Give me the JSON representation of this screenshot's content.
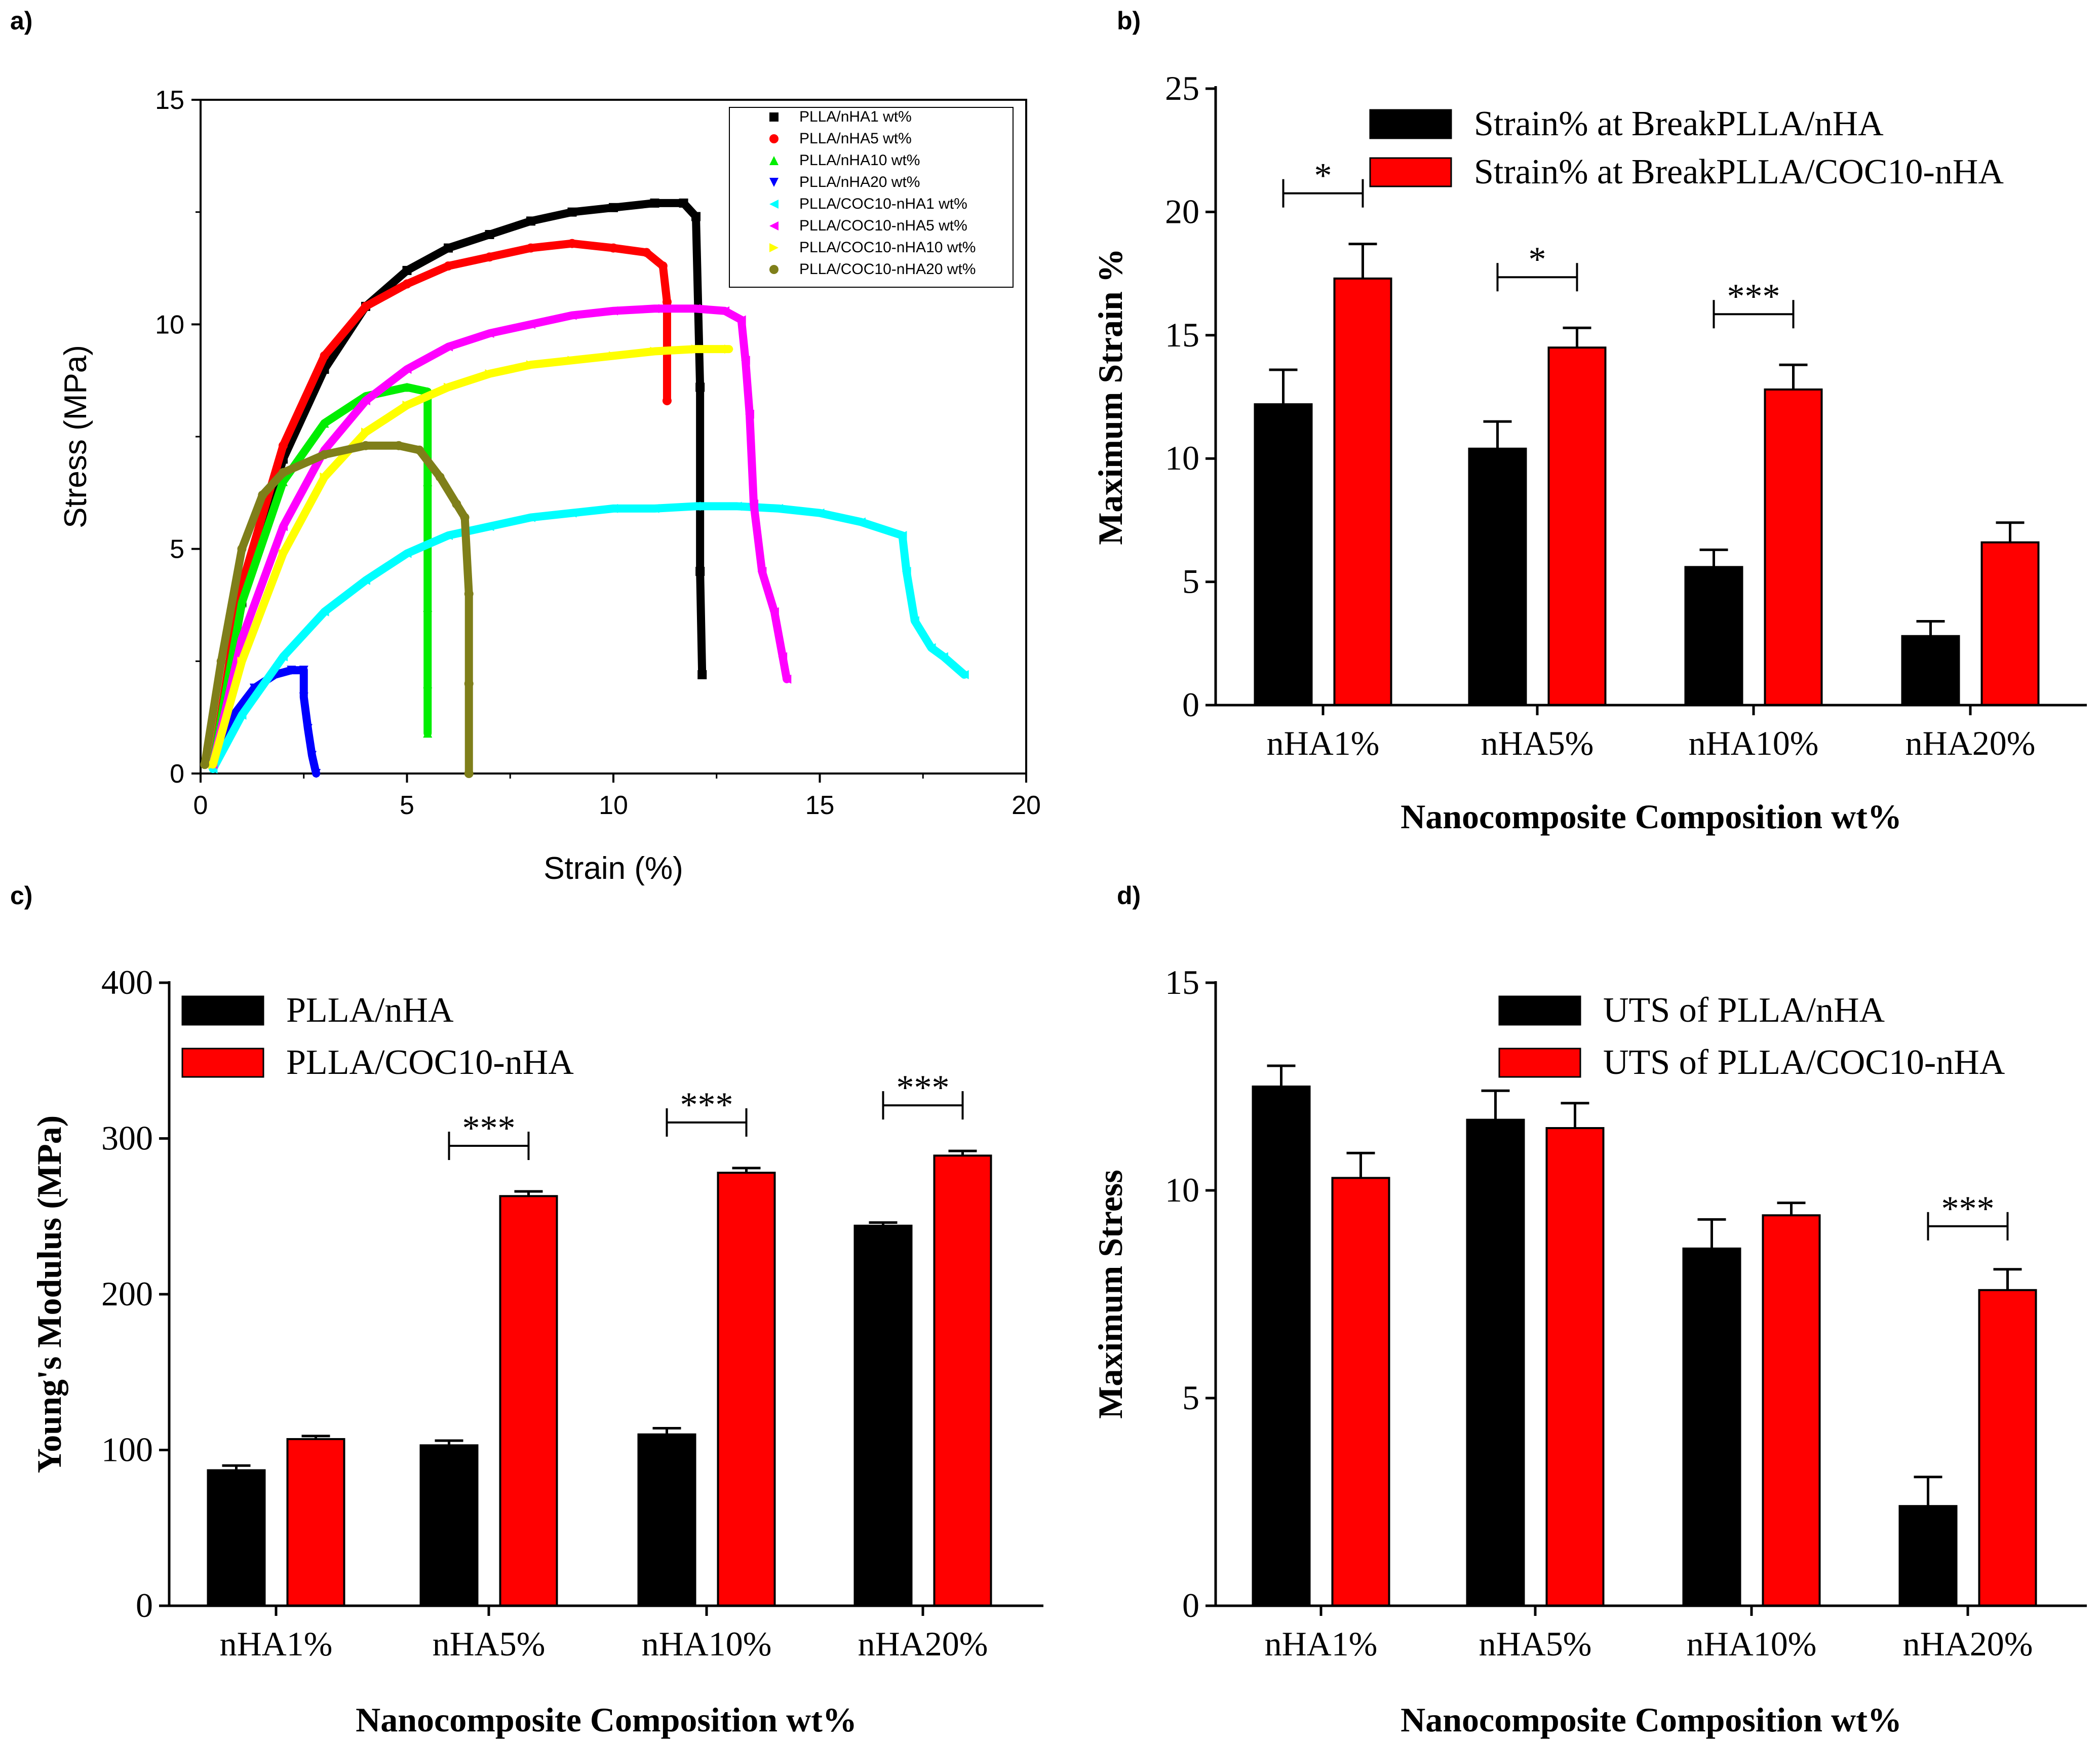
{
  "chart_data": [
    {
      "panel": "a)",
      "type": "line",
      "xlabel": "Strain (%)",
      "ylabel": "Stress (MPa)",
      "xlim": [
        0,
        20
      ],
      "ylim": [
        0,
        15
      ],
      "xticks": [
        "0",
        "5",
        "10",
        "15",
        "20"
      ],
      "yticks": [
        "0",
        "5",
        "10",
        "15"
      ],
      "legend_position": "top-right",
      "series": [
        {
          "name": "PLLA/nHA1 wt%",
          "color": "#000000",
          "marker": "square",
          "x": [
            0.3,
            1.0,
            2.0,
            3.0,
            4.0,
            5.0,
            6.0,
            7.0,
            8.0,
            9.0,
            10.0,
            11.0,
            11.7,
            12.0,
            12.1,
            12.1,
            12.15
          ],
          "y": [
            0.2,
            3.8,
            7.0,
            9.0,
            10.4,
            11.2,
            11.7,
            12.0,
            12.3,
            12.5,
            12.6,
            12.7,
            12.7,
            12.4,
            8.6,
            4.5,
            2.2
          ]
        },
        {
          "name": "PLLA/nHA5 wt%",
          "color": "#ff0000",
          "marker": "circle",
          "x": [
            0.3,
            1.0,
            2.0,
            3.0,
            4.0,
            5.0,
            6.0,
            7.0,
            8.0,
            9.0,
            10.0,
            10.8,
            11.2,
            11.3,
            11.3
          ],
          "y": [
            0.2,
            4.2,
            7.3,
            9.3,
            10.4,
            10.9,
            11.3,
            11.5,
            11.7,
            11.8,
            11.7,
            11.6,
            11.3,
            10.5,
            8.3
          ]
        },
        {
          "name": "PLLA/nHA10 wt%",
          "color": "#00ee00",
          "marker": "triangle-up",
          "x": [
            0.3,
            1.0,
            2.0,
            3.0,
            4.0,
            5.0,
            5.5,
            5.5,
            5.5,
            5.5,
            5.5
          ],
          "y": [
            0.2,
            3.8,
            6.5,
            7.8,
            8.4,
            8.6,
            8.5,
            6.5,
            3.7,
            2.0,
            0.9
          ]
        },
        {
          "name": "PLLA/nHA20 wt%",
          "color": "#0000ff",
          "marker": "triangle-down",
          "x": [
            0.3,
            0.8,
            1.3,
            1.8,
            2.2,
            2.5,
            2.5,
            2.6,
            2.7,
            2.8
          ],
          "y": [
            0.2,
            1.3,
            1.9,
            2.2,
            2.3,
            2.3,
            1.7,
            1.0,
            0.4,
            0.0
          ]
        },
        {
          "name": "PLLA/COC10-nHA1 wt%",
          "color": "#00ffff",
          "marker": "triangle-left",
          "x": [
            0.3,
            1.0,
            2.0,
            3.0,
            4.0,
            5.0,
            6.0,
            7.0,
            8.0,
            9.0,
            10.0,
            11.0,
            12.0,
            13.0,
            14.0,
            15.0,
            16.0,
            17.0,
            17.1,
            17.3,
            17.7,
            18.0,
            18.5
          ],
          "y": [
            0.1,
            1.3,
            2.6,
            3.6,
            4.3,
            4.9,
            5.3,
            5.5,
            5.7,
            5.8,
            5.9,
            5.9,
            5.95,
            5.95,
            5.9,
            5.8,
            5.6,
            5.3,
            4.5,
            3.4,
            2.8,
            2.6,
            2.2
          ]
        },
        {
          "name": "PLLA/COC10-nHA5 wt%",
          "color": "#ff00ff",
          "marker": "triangle-left",
          "x": [
            0.3,
            1.0,
            2.0,
            3.0,
            4.0,
            5.0,
            6.0,
            7.0,
            8.0,
            9.0,
            10.0,
            11.0,
            12.0,
            12.7,
            13.1,
            13.2,
            13.3,
            13.4,
            13.6,
            13.9,
            14.1,
            14.2
          ],
          "y": [
            0.2,
            3.0,
            5.5,
            7.2,
            8.3,
            9.0,
            9.5,
            9.8,
            10.0,
            10.2,
            10.3,
            10.35,
            10.35,
            10.3,
            10.1,
            9.2,
            8.0,
            6.0,
            4.5,
            3.6,
            2.6,
            2.1
          ]
        },
        {
          "name": "PLLA/COC10-nHA10 wt%",
          "color": "#ffff00",
          "marker": "triangle-right",
          "x": [
            0.3,
            1.0,
            2.0,
            3.0,
            4.0,
            5.0,
            6.0,
            7.0,
            8.0,
            9.0,
            10.0,
            11.0,
            12.0,
            12.8
          ],
          "y": [
            0.2,
            2.5,
            4.9,
            6.6,
            7.6,
            8.2,
            8.6,
            8.9,
            9.1,
            9.2,
            9.3,
            9.4,
            9.45,
            9.45
          ]
        },
        {
          "name": "PLLA/COC10-nHA20 wt%",
          "color": "#7f7f1a",
          "marker": "circle",
          "x": [
            0.1,
            0.5,
            1.0,
            1.5,
            2.0,
            3.0,
            4.0,
            4.8,
            5.3,
            5.8,
            6.2,
            6.4,
            6.5,
            6.5,
            6.5
          ],
          "y": [
            0.2,
            2.5,
            5.0,
            6.2,
            6.7,
            7.1,
            7.3,
            7.3,
            7.2,
            6.6,
            6.0,
            5.7,
            4.0,
            2.0,
            0.0
          ]
        }
      ]
    },
    {
      "panel": "b)",
      "type": "bar",
      "categories": [
        "nHA1%",
        "nHA5%",
        "nHA10%",
        "nHA20%"
      ],
      "xlabel": "Nanocomposite Composition  wt%",
      "ylabel": "Maximum Strain %",
      "ylim": [
        0,
        25
      ],
      "yticks": [
        "0",
        "5",
        "10",
        "15",
        "20",
        "25"
      ],
      "legend_position": "top-right",
      "series": [
        {
          "name": "Strain% at BreakPLLA/nHA",
          "color": "#000000",
          "values": [
            12.2,
            10.4,
            5.6,
            2.8
          ],
          "errors": [
            1.4,
            1.1,
            0.7,
            0.6
          ]
        },
        {
          "name": "Strain% at BreakPLLA/COC10-nHA",
          "color": "#ff0000",
          "values": [
            17.3,
            14.5,
            12.8,
            6.6
          ],
          "errors": [
            1.4,
            0.8,
            1.0,
            0.8
          ]
        }
      ],
      "significance": [
        {
          "category": "nHA1%",
          "label": "*"
        },
        {
          "category": "nHA5%",
          "label": "*"
        },
        {
          "category": "nHA10%",
          "label": "***"
        }
      ]
    },
    {
      "panel": "c)",
      "type": "bar",
      "categories": [
        "nHA1%",
        "nHA5%",
        "nHA10%",
        "nHA20%"
      ],
      "xlabel": "Nanocomposite Composition  wt%",
      "ylabel": "Young's Modulus (MPa)",
      "ylim": [
        0,
        400
      ],
      "yticks": [
        "0",
        "100",
        "200",
        "300",
        "400"
      ],
      "legend_position": "top-left",
      "series": [
        {
          "name": "PLLA/nHA",
          "color": "#000000",
          "values": [
            87,
            103,
            110,
            244
          ],
          "errors": [
            3,
            3,
            4,
            2
          ]
        },
        {
          "name": "PLLA/COC10-nHA",
          "color": "#ff0000",
          "values": [
            107,
            263,
            278,
            289
          ],
          "errors": [
            2,
            3,
            3,
            3
          ]
        }
      ],
      "significance": [
        {
          "category": "nHA5%",
          "label": "***"
        },
        {
          "category": "nHA10%",
          "label": "***"
        },
        {
          "category": "nHA20%",
          "label": "***"
        }
      ]
    },
    {
      "panel": "d)",
      "type": "bar",
      "categories": [
        "nHA1%",
        "nHA5%",
        "nHA10%",
        "nHA20%"
      ],
      "xlabel": "Nanocomposite Composition  wt%",
      "ylabel": "Maximum Stress",
      "ylim": [
        0,
        15
      ],
      "yticks": [
        "0",
        "5",
        "10",
        "15"
      ],
      "legend_position": "top-right",
      "series": [
        {
          "name": "UTS of PLLA/nHA",
          "color": "#000000",
          "values": [
            12.5,
            11.7,
            8.6,
            2.4
          ],
          "errors": [
            0.5,
            0.7,
            0.7,
            0.7
          ]
        },
        {
          "name": "UTS of PLLA/COC10-nHA",
          "color": "#ff0000",
          "values": [
            10.3,
            11.5,
            9.4,
            7.6
          ],
          "errors": [
            0.6,
            0.6,
            0.3,
            0.5
          ]
        }
      ],
      "significance": [
        {
          "category": "nHA20%",
          "label": "***"
        }
      ]
    }
  ]
}
